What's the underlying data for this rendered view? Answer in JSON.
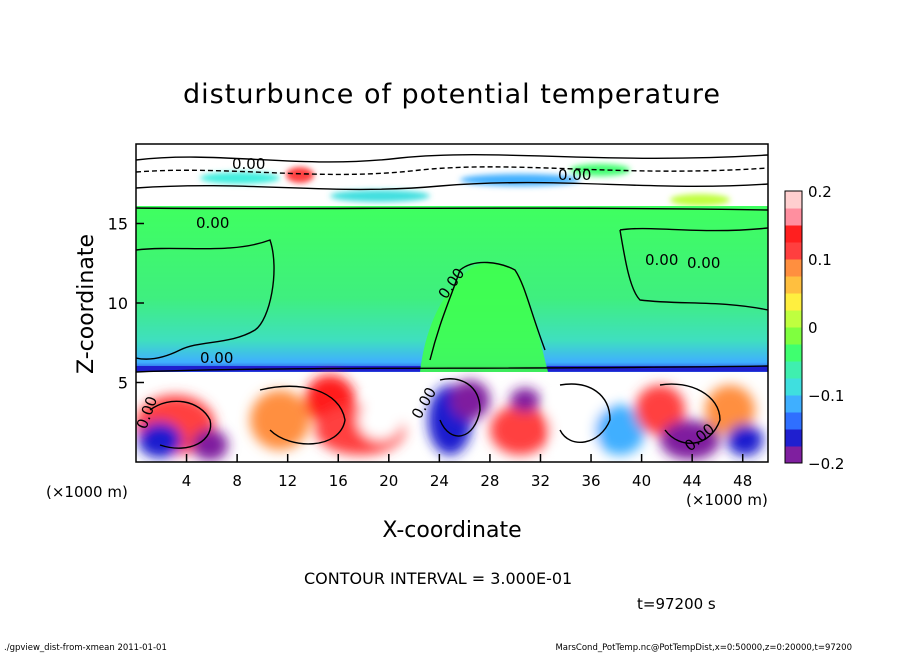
{
  "chart_data": {
    "type": "heatmap",
    "title": "disturbunce of potential temperature",
    "xlabel": "X-coordinate",
    "ylabel": "Z-coordinate",
    "x_unit_left": "(×1000 m)",
    "x_unit_right": "(×1000 m)",
    "xlim": [
      0,
      50
    ],
    "ylim": [
      0,
      20
    ],
    "x_ticks": [
      4,
      8,
      12,
      16,
      20,
      24,
      28,
      32,
      36,
      40,
      44,
      48
    ],
    "y_ticks": [
      5,
      10,
      15
    ],
    "colorbar": {
      "min": -0.2,
      "max": 0.2,
      "ticks": [
        0.2,
        0.1,
        0,
        -0.1,
        -0.2
      ],
      "tick_labels": [
        "0.2",
        "0.1",
        "0",
        "−0.1",
        "−0.2"
      ],
      "colors": [
        "#7f1f9f",
        "#1f1fcf",
        "#2f6fff",
        "#3fafff",
        "#3fdfdf",
        "#3fefaf",
        "#3fff6f",
        "#7fff3f",
        "#bfff3f",
        "#ffef3f",
        "#ffbf3f",
        "#ff8f3f",
        "#ff3f3f",
        "#ff1f1f",
        "#ff8f9f",
        "#ffcfcf"
      ]
    },
    "contour_labels": [
      "0.00",
      "0.00",
      "0.00",
      "0.00",
      "0.00",
      "0.00",
      "0.00",
      "0.00",
      "0.00",
      "0.00"
    ],
    "contour_interval_text": "CONTOUR INTERVAL = 3.000E-01",
    "time_text": "t=97200 s"
  },
  "footer": {
    "left": "./gpview_dist-from-xmean   2011-01-01",
    "right": "MarsCond_PotTemp.nc@PotTempDist,x=0:50000,z=0:20000,t=97200"
  }
}
